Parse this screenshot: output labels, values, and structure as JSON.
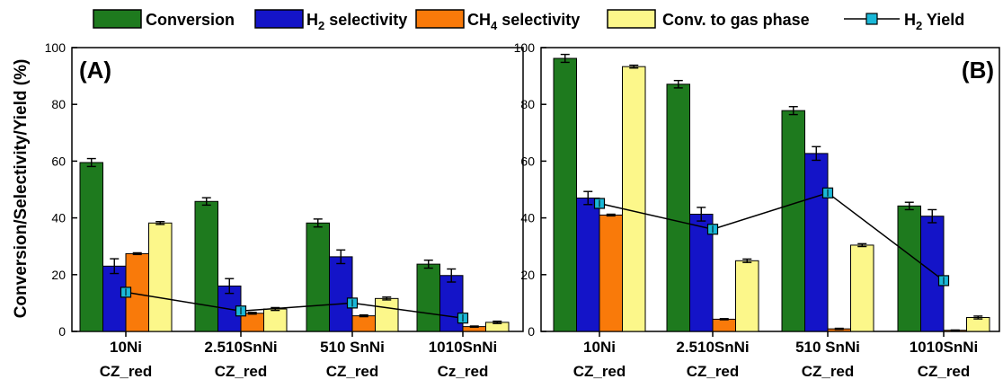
{
  "legend": {
    "items": [
      {
        "label": "Conversion",
        "sub": "",
        "suffix": "",
        "color": "#1e7a1e",
        "kind": "bar"
      },
      {
        "label": "H",
        "sub": "2",
        "suffix": " selectivity",
        "color": "#1414c8",
        "kind": "bar"
      },
      {
        "label": "CH",
        "sub": "4",
        "suffix": " selectivity",
        "color": "#f97a0a",
        "kind": "bar"
      },
      {
        "label": "Conv. to gas phase",
        "sub": "",
        "suffix": "",
        "color": "#fcf78a",
        "kind": "bar"
      },
      {
        "label": "H",
        "sub": "2",
        "suffix": " Yield",
        "color": "#1ab8d8",
        "kind": "line"
      }
    ]
  },
  "y_axis_label": "Conversion/Selectivity/Yield (%)",
  "chart_data": [
    {
      "type": "bar",
      "panel_label": "(A)",
      "categories": [
        [
          "10Ni",
          "CZ_red"
        ],
        [
          "2.510SnNi",
          "CZ_red"
        ],
        [
          "510 SnNi",
          "CZ_red"
        ],
        [
          "1010SnNi",
          "Cz_red"
        ]
      ],
      "ylim": [
        0,
        100
      ],
      "yticks": [
        "0",
        "20",
        "40",
        "60",
        "80",
        "100"
      ],
      "series": [
        {
          "name": "Conversion",
          "color": "#1e7a1e",
          "values": [
            59.5,
            45.8,
            38.2,
            23.7
          ],
          "errors": [
            1.4,
            1.3,
            1.4,
            1.4
          ]
        },
        {
          "name": "H2 selectivity",
          "color": "#1414c8",
          "values": [
            23.0,
            16.0,
            26.3,
            19.7
          ],
          "errors": [
            2.6,
            2.6,
            2.4,
            2.3
          ]
        },
        {
          "name": "CH4 selectivity",
          "color": "#f97a0a",
          "values": [
            27.4,
            6.4,
            5.5,
            1.7
          ],
          "errors": [
            0.3,
            0.3,
            0.3,
            0.2
          ]
        },
        {
          "name": "Conv. to gas phase",
          "color": "#fcf78a",
          "values": [
            38.2,
            7.9,
            11.6,
            3.2
          ],
          "errors": [
            0.5,
            0.5,
            0.5,
            0.4
          ]
        }
      ],
      "line": {
        "name": "H2 Yield",
        "color": "#1ab8d8",
        "values": [
          13.8,
          7.2,
          10.0,
          4.7
        ]
      }
    },
    {
      "type": "bar",
      "panel_label": "(B)",
      "categories": [
        [
          "10Ni",
          "CZ_red"
        ],
        [
          "2.510SnNi",
          "CZ_red"
        ],
        [
          "510 SnNi",
          "CZ_red"
        ],
        [
          "1010SnNi",
          "CZ_red"
        ]
      ],
      "ylim": [
        0,
        100
      ],
      "yticks": [
        "0",
        "20",
        "40",
        "60",
        "80",
        "100"
      ],
      "series": [
        {
          "name": "Conversion",
          "color": "#1e7a1e",
          "values": [
            96.2,
            87.1,
            77.8,
            44.2
          ],
          "errors": [
            1.4,
            1.3,
            1.4,
            1.3
          ]
        },
        {
          "name": "H2 selectivity",
          "color": "#1414c8",
          "values": [
            47.0,
            41.3,
            62.7,
            40.6
          ],
          "errors": [
            2.3,
            2.4,
            2.4,
            2.3
          ]
        },
        {
          "name": "CH4 selectivity",
          "color": "#f97a0a",
          "values": [
            41.0,
            4.3,
            0.9,
            0.4
          ],
          "errors": [
            0.3,
            0.2,
            0.2,
            0.1
          ]
        },
        {
          "name": "Conv. to gas phase",
          "color": "#fcf78a",
          "values": [
            93.3,
            24.9,
            30.4,
            4.9
          ],
          "errors": [
            0.5,
            0.6,
            0.5,
            0.5
          ]
        }
      ],
      "line": {
        "name": "H2 Yield",
        "color": "#1ab8d8",
        "values": [
          45.1,
          36.0,
          48.8,
          17.9
        ]
      }
    }
  ]
}
